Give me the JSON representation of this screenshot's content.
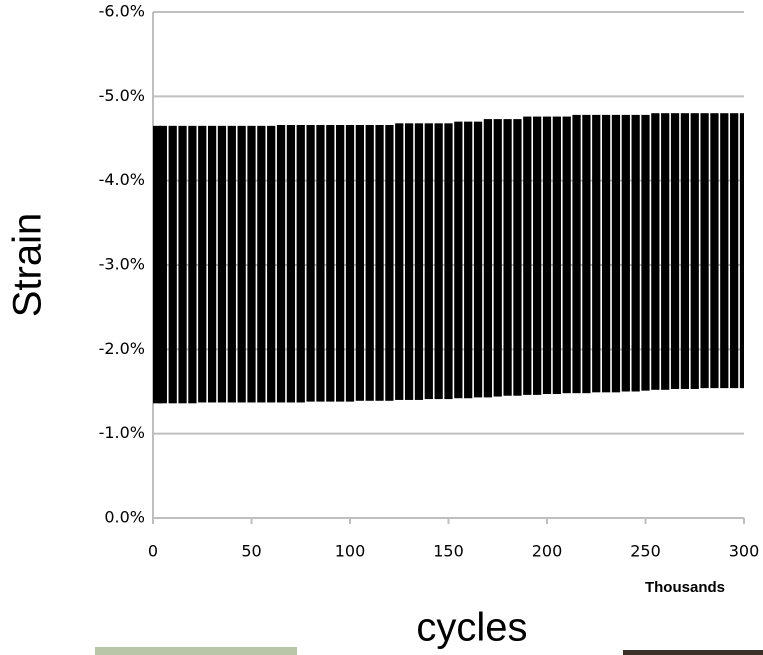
{
  "chart_data": {
    "type": "range",
    "y_label": "Strain",
    "x_label": "cycles",
    "x_unit": "Thousands",
    "x": [
      0,
      5,
      10,
      15,
      20,
      25,
      30,
      35,
      40,
      45,
      50,
      55,
      60,
      65,
      70,
      75,
      80,
      85,
      90,
      95,
      100,
      105,
      110,
      115,
      120,
      125,
      130,
      135,
      140,
      145,
      150,
      155,
      160,
      165,
      170,
      175,
      180,
      185,
      190,
      195,
      200,
      205,
      210,
      215,
      220,
      225,
      230,
      235,
      240,
      245,
      250,
      255,
      260,
      265,
      270,
      275,
      280,
      285,
      290,
      295,
      300
    ],
    "series": [
      {
        "color": "#000000",
        "values": [
          -1.36,
          -1.36,
          -1.36,
          -1.36,
          -1.36,
          -1.37,
          -1.37,
          -1.37,
          -1.37,
          -1.37,
          -1.37,
          -1.37,
          -1.37,
          -1.37,
          -1.37,
          -1.37,
          -1.38,
          -1.38,
          -1.38,
          -1.38,
          -1.38,
          -1.39,
          -1.39,
          -1.39,
          -1.39,
          -1.4,
          -1.4,
          -1.4,
          -1.41,
          -1.41,
          -1.41,
          -1.42,
          -1.42,
          -1.43,
          -1.43,
          -1.44,
          -1.45,
          -1.45,
          -1.46,
          -1.46,
          -1.47,
          -1.47,
          -1.48,
          -1.48,
          -1.48,
          -1.49,
          -1.49,
          -1.49,
          -1.5,
          -1.5,
          -1.51,
          -1.52,
          -1.52,
          -1.53,
          -1.53,
          -1.53,
          -1.54,
          -1.54,
          -1.54,
          -1.54,
          -1.54
        ]
      },
      {
        "color": "#000000",
        "values": [
          -4.65,
          -4.65,
          -4.65,
          -4.65,
          -4.65,
          -4.65,
          -4.65,
          -4.65,
          -4.65,
          -4.65,
          -4.65,
          -4.65,
          -4.65,
          -4.66,
          -4.66,
          -4.66,
          -4.66,
          -4.66,
          -4.66,
          -4.66,
          -4.66,
          -4.66,
          -4.66,
          -4.66,
          -4.66,
          -4.68,
          -4.68,
          -4.68,
          -4.68,
          -4.68,
          -4.68,
          -4.7,
          -4.7,
          -4.7,
          -4.73,
          -4.73,
          -4.73,
          -4.73,
          -4.76,
          -4.76,
          -4.76,
          -4.76,
          -4.76,
          -4.78,
          -4.78,
          -4.78,
          -4.78,
          -4.78,
          -4.78,
          -4.78,
          -4.78,
          -4.8,
          -4.8,
          -4.8,
          -4.8,
          -4.8,
          -4.8,
          -4.8,
          -4.8,
          -4.8,
          -4.8
        ]
      }
    ],
    "xlim": [
      0,
      300
    ],
    "xticks": [
      0,
      50,
      100,
      150,
      200,
      250,
      300
    ],
    "ylim": [
      0,
      -6
    ],
    "yticks": [
      {
        "value": 0,
        "label": "0.0%"
      },
      {
        "value": -1,
        "label": "-1.0%"
      },
      {
        "value": -2,
        "label": "-2.0%"
      },
      {
        "value": -3,
        "label": "-3.0%"
      },
      {
        "value": -4,
        "label": "-4.0%"
      },
      {
        "value": -5,
        "label": "-5.0%"
      },
      {
        "value": -6,
        "label": "-6.0%"
      }
    ],
    "grid": true
  }
}
